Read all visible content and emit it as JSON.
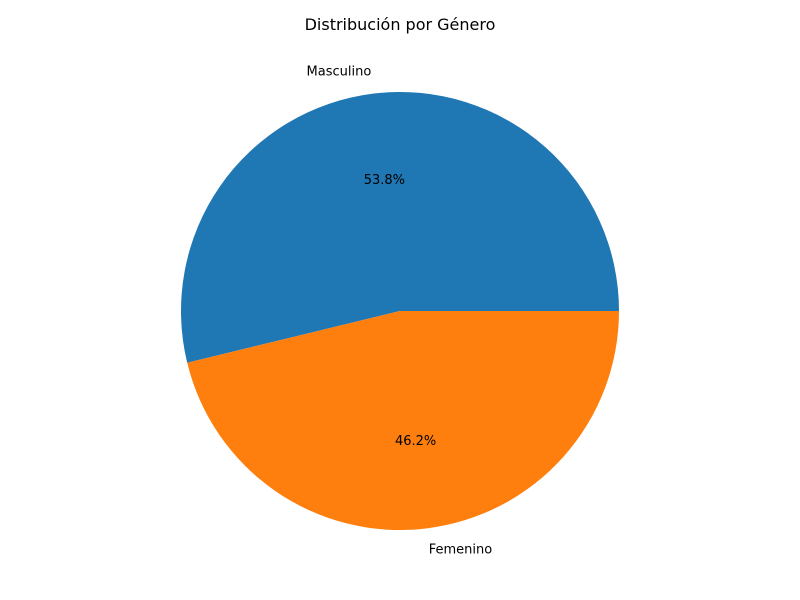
{
  "chart_data": {
    "type": "pie",
    "title": "Distribución por Género",
    "slices": [
      {
        "label": "Masculino",
        "value": 53.8,
        "pct_label": "53.8%",
        "color": "#1f77b4"
      },
      {
        "label": "Femenino",
        "value": 46.2,
        "pct_label": "46.2%",
        "color": "#ff7f0e"
      }
    ],
    "start_angle_deg": 0,
    "direction": "counterclockwise"
  }
}
